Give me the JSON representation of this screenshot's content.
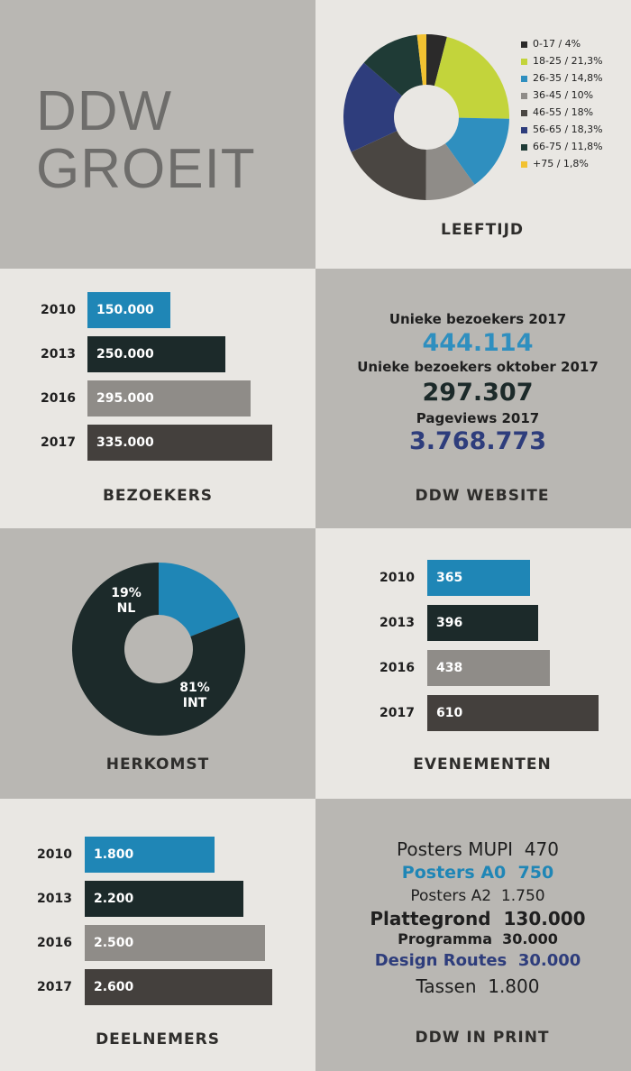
{
  "title": {
    "line1": "DDW",
    "line2": "GROEIT"
  },
  "colors": {
    "blue": "#1f86b6",
    "dark_teal": "#1c2a2a",
    "gray": "#8f8c88",
    "dark_brown": "#44403d",
    "lime": "#c3d43b",
    "navy": "#2e3d7c",
    "yellow": "#f2c231"
  },
  "leeftijd": {
    "label": "LEEFTIJD",
    "chart_data": {
      "type": "pie",
      "segments": [
        {
          "label": "0-17 / 4%",
          "value": 4,
          "color": "#2b2a2a"
        },
        {
          "label": "18-25 / 21,3%",
          "value": 21.3,
          "color": "#c3d43b"
        },
        {
          "label": "26-35 / 14,8%",
          "value": 14.8,
          "color": "#2f8fbf"
        },
        {
          "label": "36-45 / 10%",
          "value": 10,
          "color": "#8f8c88"
        },
        {
          "label": "46-55 / 18%",
          "value": 18,
          "color": "#4a4642"
        },
        {
          "label": "56-65 / 18,3%",
          "value": 18.3,
          "color": "#2e3d7c"
        },
        {
          "label": "66-75 / 11,8%",
          "value": 11.8,
          "color": "#1f3b36"
        },
        {
          "label": "+75 / 1,8%",
          "value": 1.8,
          "color": "#f2c231"
        }
      ]
    }
  },
  "bezoekers": {
    "label": "BEZOEKERS",
    "chart_data": {
      "type": "bar",
      "categories": [
        "2010",
        "2013",
        "2016",
        "2017"
      ],
      "values": [
        150000,
        250000,
        295000,
        335000
      ],
      "value_labels": [
        "150.000",
        "250.000",
        "295.000",
        "335.000"
      ]
    }
  },
  "website": {
    "label": "DDW WEBSITE",
    "stats": [
      {
        "label": "Unieke bezoekers 2017",
        "value": "444.114",
        "color": "#2f8fbf"
      },
      {
        "label": "Unieke bezoekers oktober 2017",
        "value": "297.307",
        "color": "#1c2a2a"
      },
      {
        "label": "Pageviews 2017",
        "value": "3.768.773",
        "color": "#2e3d7c"
      }
    ]
  },
  "herkomst": {
    "label": "HERKOMST",
    "chart_data": {
      "type": "pie",
      "segments": [
        {
          "pct": "19%",
          "name": "NL",
          "value": 19,
          "color": "#1f86b6"
        },
        {
          "pct": "81%",
          "name": "INT",
          "value": 81,
          "color": "#1c2a2a"
        }
      ]
    }
  },
  "evenementen": {
    "label": "EVENEMENTEN",
    "chart_data": {
      "type": "bar",
      "categories": [
        "2010",
        "2013",
        "2016",
        "2017"
      ],
      "values": [
        365,
        396,
        438,
        610
      ],
      "value_labels": [
        "365",
        "396",
        "438",
        "610"
      ]
    }
  },
  "deelnemers": {
    "label": "DEELNEMERS",
    "chart_data": {
      "type": "bar",
      "categories": [
        "2010",
        "2013",
        "2016",
        "2017"
      ],
      "values": [
        1800,
        2200,
        2500,
        2600
      ],
      "value_labels": [
        "1.800",
        "2.200",
        "2.500",
        "2.600"
      ]
    }
  },
  "print": {
    "label": "DDW IN PRINT",
    "items": [
      {
        "name": "Posters MUPI",
        "value": "470",
        "color": "#1f1f1f"
      },
      {
        "name": "Posters A0",
        "value": "750",
        "color": "#1f86b6"
      },
      {
        "name": "Posters A2",
        "value": "1.750",
        "color": "#1f1f1f"
      },
      {
        "name": "Plattegrond",
        "value": "130.000",
        "color": "#1f1f1f"
      },
      {
        "name": "Programma",
        "value": "30.000",
        "color": "#1f1f1f"
      },
      {
        "name": "Design Routes",
        "value": "30.000",
        "color": "#2e3d7c"
      },
      {
        "name": "Tassen",
        "value": "1.800",
        "color": "#1f1f1f"
      }
    ]
  }
}
